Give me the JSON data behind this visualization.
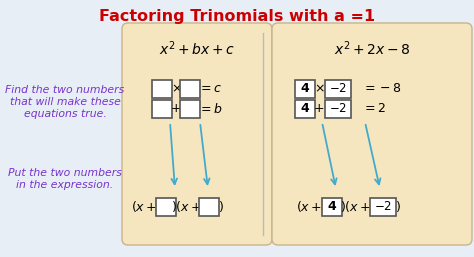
{
  "title": "Factoring Trinomials with a =1",
  "title_color": "#cc0000",
  "title_fontsize": 11.5,
  "bg_color": "#e8eef5",
  "panel_color": "#f5e6c0",
  "panel_edge_color": "#c8b48a",
  "left_text_color": "#7733cc",
  "arrow_color": "#44aacc",
  "box_facecolor": "#ffffff",
  "box_edgecolor": "#555555",
  "left_instructions_1": "Find the two numbers\nthat will make these\nequations true.",
  "left_instructions_2": "Put the two numbers\nin the expression."
}
